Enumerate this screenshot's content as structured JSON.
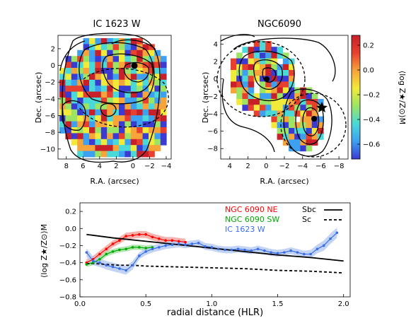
{
  "colors": {
    "ngc_ne": "#ff0000",
    "ngc_sw": "#00aa00",
    "ic1623": "#3a6ee6",
    "band_ne": "#f4a09a",
    "band_sw": "#9ee09e",
    "band_ic": "#b4c8f2",
    "colormap": [
      "#3b3bd2",
      "#3ea0f0",
      "#4ad8d8",
      "#9ce464",
      "#f2ea3a",
      "#f7a43a",
      "#e8402e",
      "#c8202a"
    ]
  },
  "maps": [
    {
      "title": "IC 1623 W",
      "xlabel": "R.A. (arcsec)",
      "ylabel": "Dec. (arcsec)",
      "xticks": [
        "8",
        "6",
        "4",
        "2",
        "0",
        "−2",
        "−4"
      ],
      "yticks": [
        "2",
        "0",
        "−2",
        "−4",
        "−6",
        "−8",
        "−10"
      ],
      "xrange": [
        9,
        -4.6
      ],
      "yrange": [
        -11.2,
        3.6
      ]
    },
    {
      "title": "NGC6090",
      "xlabel": "R.A. (arcsec)",
      "ylabel": "Dec. (arcsec)",
      "xticks": [
        "4",
        "2",
        "0",
        "−2",
        "−4",
        "−6",
        "−8"
      ],
      "yticks": [
        "4",
        "2",
        "0",
        "−2",
        "−4",
        "−6",
        "−8"
      ],
      "xrange": [
        5,
        -9
      ],
      "yrange": [
        -9.2,
        5
      ]
    }
  ],
  "colorbar": {
    "label": "⟨log Z★/Z⊙⟩M",
    "ticks": [
      "0.2",
      "0.0",
      "−0.2",
      "−0.4",
      "−0.6"
    ],
    "range": [
      -0.72,
      0.28
    ],
    "tick_values": [
      0.2,
      0.0,
      -0.2,
      -0.4,
      -0.6
    ]
  },
  "chart_data": {
    "type": "line",
    "xlabel": "radial distance (HLR)",
    "ylabel": "⟨log Z★/Z⊙⟩M",
    "xlim": [
      0,
      2.05
    ],
    "ylim": [
      -0.8,
      0.3
    ],
    "xticks": [
      {
        "v": 0.0,
        "label": "0.0"
      },
      {
        "v": 0.5,
        "label": "0.5"
      },
      {
        "v": 1.0,
        "label": "1.0"
      },
      {
        "v": 1.5,
        "label": "1.5"
      },
      {
        "v": 2.0,
        "label": "2.0"
      }
    ],
    "yticks": [
      {
        "v": 0.2,
        "label": "0.2"
      },
      {
        "v": 0.0,
        "label": "0.0"
      },
      {
        "v": -0.2,
        "label": "−0.2"
      },
      {
        "v": -0.4,
        "label": "−0.4"
      },
      {
        "v": -0.6,
        "label": "−0.6"
      },
      {
        "v": -0.8,
        "label": "−0.8"
      }
    ],
    "series": [
      {
        "name": "NGC 6090 NE",
        "color": "#ff0000",
        "x": [
          0.05,
          0.1,
          0.15,
          0.2,
          0.25,
          0.3,
          0.35,
          0.4,
          0.45,
          0.5,
          0.55,
          0.6,
          0.65,
          0.7,
          0.75,
          0.8
        ],
        "y": [
          -0.4,
          -0.36,
          -0.3,
          -0.24,
          -0.18,
          -0.14,
          -0.09,
          -0.08,
          -0.07,
          -0.07,
          -0.1,
          -0.12,
          -0.14,
          -0.14,
          -0.15,
          -0.16
        ],
        "err": [
          0.04,
          0.04,
          0.04,
          0.04,
          0.04,
          0.04,
          0.04,
          0.04,
          0.04,
          0.04,
          0.04,
          0.04,
          0.04,
          0.04,
          0.04,
          0.04
        ]
      },
      {
        "name": "NGC 6090 SW",
        "color": "#00aa00",
        "x": [
          0.05,
          0.1,
          0.15,
          0.2,
          0.25,
          0.3,
          0.35,
          0.4,
          0.45,
          0.5,
          0.55
        ],
        "y": [
          -0.42,
          -0.4,
          -0.36,
          -0.3,
          -0.27,
          -0.25,
          -0.24,
          -0.22,
          -0.22,
          -0.23,
          -0.22
        ],
        "err": [
          0.03,
          0.03,
          0.03,
          0.03,
          0.03,
          0.03,
          0.03,
          0.03,
          0.03,
          0.03,
          0.03
        ]
      },
      {
        "name": "IC 1623 W",
        "color": "#3a6ee6",
        "x": [
          0.05,
          0.1,
          0.15,
          0.2,
          0.25,
          0.3,
          0.35,
          0.4,
          0.45,
          0.5,
          0.55,
          0.6,
          0.65,
          0.7,
          0.75,
          0.8,
          0.85,
          0.9,
          0.95,
          1.0,
          1.05,
          1.1,
          1.15,
          1.2,
          1.25,
          1.3,
          1.35,
          1.4,
          1.45,
          1.5,
          1.55,
          1.6,
          1.65,
          1.7,
          1.75,
          1.8,
          1.85,
          1.9,
          1.95
        ],
        "y": [
          -0.28,
          -0.38,
          -0.4,
          -0.43,
          -0.45,
          -0.47,
          -0.49,
          -0.43,
          -0.32,
          -0.27,
          -0.24,
          -0.22,
          -0.2,
          -0.19,
          -0.18,
          -0.19,
          -0.18,
          -0.17,
          -0.21,
          -0.22,
          -0.24,
          -0.25,
          -0.25,
          -0.24,
          -0.25,
          -0.26,
          -0.24,
          -0.26,
          -0.28,
          -0.29,
          -0.28,
          -0.26,
          -0.28,
          -0.3,
          -0.3,
          -0.24,
          -0.2,
          -0.12,
          -0.05
        ],
        "err": [
          0.05,
          0.05,
          0.05,
          0.05,
          0.05,
          0.05,
          0.05,
          0.05,
          0.04,
          0.04,
          0.04,
          0.04,
          0.04,
          0.04,
          0.04,
          0.04,
          0.04,
          0.04,
          0.04,
          0.04,
          0.04,
          0.04,
          0.04,
          0.04,
          0.04,
          0.04,
          0.04,
          0.04,
          0.04,
          0.04,
          0.04,
          0.04,
          0.04,
          0.04,
          0.05,
          0.05,
          0.06,
          0.06,
          0.06
        ]
      },
      {
        "name": "Sbc",
        "color": "#000000",
        "style": "solid",
        "x": [
          0.05,
          0.25,
          0.5,
          0.75,
          1.0,
          1.25,
          1.5,
          1.75,
          2.0
        ],
        "y": [
          -0.07,
          -0.11,
          -0.15,
          -0.19,
          -0.23,
          -0.27,
          -0.31,
          -0.34,
          -0.38
        ]
      },
      {
        "name": "Sc",
        "color": "#000000",
        "style": "dashed",
        "x": [
          0.05,
          0.1,
          0.2,
          0.3,
          0.4,
          0.5,
          0.75,
          1.0,
          1.25,
          1.5,
          1.75,
          2.0
        ],
        "y": [
          -0.41,
          -0.41,
          -0.42,
          -0.43,
          -0.43,
          -0.44,
          -0.45,
          -0.46,
          -0.47,
          -0.49,
          -0.5,
          -0.52
        ]
      }
    ]
  }
}
